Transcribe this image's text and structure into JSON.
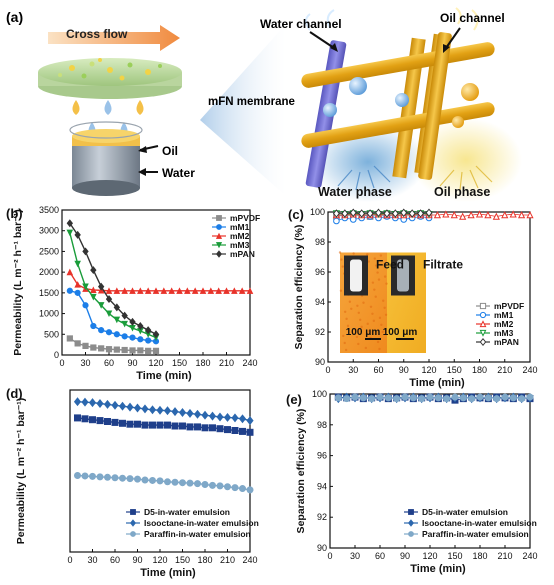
{
  "panel_a": {
    "label": "(a)",
    "cross_flow": "Cross flow",
    "oil": "Oil",
    "water": "Water",
    "membrane": "mFN membrane",
    "water_channel": "Water channel",
    "oil_channel": "Oil channel",
    "water_phase": "Water phase",
    "oil_phase": "Oil phase",
    "colors": {
      "water_fiber": "#7a78d8",
      "oil_fiber": "#e9ad16",
      "water_phase": "#6fa9d8",
      "oil_phase": "#f4e07a"
    }
  },
  "chart_data": [
    {
      "id": "b",
      "panel_label": "(b)",
      "type": "line",
      "xlabel": "Time (min)",
      "ylabel": "Permeability (L m⁻² h⁻¹ bar⁻¹)",
      "xlim": [
        0,
        240
      ],
      "ylim": [
        0,
        3500
      ],
      "xticks": [
        "0",
        "30",
        "60",
        "90",
        "120",
        "150",
        "180",
        "210",
        "240"
      ],
      "yticks": [
        "0",
        "500",
        "1000",
        "1500",
        "2000",
        "2500",
        "3000",
        "3500"
      ],
      "legend_position": "top-right",
      "series": [
        {
          "name": "mPVDF",
          "color": "#8c8c8c",
          "marker": "square",
          "x": [
            10,
            20,
            30,
            40,
            50,
            60,
            70,
            80,
            90,
            100,
            110,
            120
          ],
          "y": [
            400,
            280,
            220,
            180,
            160,
            140,
            130,
            120,
            110,
            110,
            100,
            100
          ]
        },
        {
          "name": "mM1",
          "color": "#1c7ee8",
          "marker": "circle",
          "x": [
            10,
            20,
            30,
            40,
            50,
            60,
            70,
            80,
            90,
            100,
            110,
            120
          ],
          "y": [
            1550,
            1500,
            1200,
            700,
            600,
            550,
            500,
            450,
            420,
            380,
            350,
            330
          ]
        },
        {
          "name": "mM2",
          "color": "#e8332a",
          "marker": "triangle-up",
          "x": [
            10,
            20,
            30,
            40,
            50,
            60,
            70,
            80,
            90,
            100,
            110,
            120,
            130,
            140,
            150,
            160,
            170,
            180,
            190,
            200,
            210,
            220,
            230,
            240
          ],
          "y": [
            2000,
            1700,
            1600,
            1570,
            1560,
            1550,
            1550,
            1550,
            1550,
            1550,
            1550,
            1550,
            1550,
            1550,
            1550,
            1550,
            1550,
            1550,
            1550,
            1550,
            1550,
            1550,
            1550,
            1550
          ]
        },
        {
          "name": "mM3",
          "color": "#1a9c3a",
          "marker": "triangle-down",
          "x": [
            10,
            20,
            30,
            40,
            50,
            60,
            70,
            80,
            90,
            100,
            110,
            120
          ],
          "y": [
            2950,
            2200,
            1650,
            1400,
            1200,
            1000,
            850,
            750,
            650,
            580,
            500,
            420
          ]
        },
        {
          "name": "mPAN",
          "color": "#333333",
          "marker": "diamond",
          "x": [
            10,
            20,
            30,
            40,
            50,
            60,
            70,
            80,
            90,
            100,
            110,
            120
          ],
          "y": [
            3180,
            2900,
            2500,
            2050,
            1650,
            1350,
            1150,
            950,
            800,
            700,
            600,
            500
          ]
        }
      ]
    },
    {
      "id": "c",
      "panel_label": "(c)",
      "type": "line",
      "xlabel": "Time (min)",
      "ylabel": "Separation efficiency (%)",
      "xlim": [
        0,
        240
      ],
      "ylim": [
        90,
        100
      ],
      "xticks": [
        "0",
        "30",
        "60",
        "90",
        "120",
        "150",
        "180",
        "210",
        "240"
      ],
      "yticks": [
        "90",
        "92",
        "94",
        "96",
        "98",
        "100"
      ],
      "legend_position": "bottom-right",
      "inset": {
        "feed": "Feed",
        "filtrate": "Filtrate",
        "scale_left": "100 μm",
        "scale_right": "100 μm"
      },
      "series": [
        {
          "name": "mPVDF",
          "color": "#8c8c8c",
          "marker": "square-open",
          "x": [
            10,
            20,
            30,
            40,
            50,
            60,
            70,
            80,
            90,
            100,
            110,
            120
          ],
          "y": [
            99.7,
            99.8,
            99.75,
            99.8,
            99.7,
            99.8,
            99.75,
            99.8,
            99.7,
            99.8,
            99.75,
            99.8
          ]
        },
        {
          "name": "mM1",
          "color": "#1c7ee8",
          "marker": "circle-open",
          "x": [
            10,
            20,
            30,
            40,
            50,
            60,
            70,
            80,
            90,
            100,
            110,
            120
          ],
          "y": [
            99.4,
            99.6,
            99.5,
            99.6,
            99.7,
            99.6,
            99.7,
            99.6,
            99.5,
            99.6,
            99.7,
            99.6
          ]
        },
        {
          "name": "mM2",
          "color": "#e8332a",
          "marker": "triangle-open",
          "x": [
            10,
            20,
            30,
            40,
            50,
            60,
            70,
            80,
            90,
            100,
            110,
            120,
            130,
            140,
            150,
            160,
            170,
            180,
            190,
            200,
            210,
            220,
            230,
            240
          ],
          "y": [
            99.8,
            99.8,
            99.85,
            99.8,
            99.8,
            99.85,
            99.8,
            99.8,
            99.8,
            99.85,
            99.8,
            99.8,
            99.8,
            99.85,
            99.8,
            99.7,
            99.8,
            99.85,
            99.8,
            99.7,
            99.8,
            99.85,
            99.8,
            99.8
          ]
        },
        {
          "name": "mM3",
          "color": "#1a9c3a",
          "marker": "triangle-down-open",
          "x": [
            10,
            20,
            30,
            40,
            50,
            60,
            70,
            80,
            90,
            100,
            110,
            120
          ],
          "y": [
            99.9,
            99.85,
            99.9,
            99.85,
            99.9,
            99.85,
            99.9,
            99.85,
            99.9,
            99.85,
            99.9,
            99.85
          ]
        },
        {
          "name": "mPAN",
          "color": "#333333",
          "marker": "diamond-open",
          "x": [
            10,
            20,
            30,
            40,
            50,
            60,
            70,
            80,
            90,
            100,
            110,
            120
          ],
          "y": [
            99.9,
            99.9,
            99.95,
            99.9,
            99.9,
            99.95,
            99.9,
            99.9,
            99.95,
            99.9,
            99.9,
            99.95
          ]
        }
      ]
    },
    {
      "id": "d",
      "panel_label": "(d)",
      "type": "line",
      "xlabel": "Time (min)",
      "ylabel": "Permeability (L m⁻² h⁻¹ bar⁻¹)",
      "xlim": [
        0,
        240
      ],
      "ylim": [
        0,
        1800
      ],
      "xticks": [
        "0",
        "30",
        "60",
        "90",
        "120",
        "150",
        "180",
        "210",
        "240"
      ],
      "yticks": [],
      "legend_position": "bottom-center",
      "series": [
        {
          "name": "D5-in-water emulsion",
          "color": "#1f3f8a",
          "marker": "square",
          "x": [
            10,
            20,
            30,
            40,
            50,
            60,
            70,
            80,
            90,
            100,
            110,
            120,
            130,
            140,
            150,
            160,
            170,
            180,
            190,
            200,
            210,
            220,
            230,
            240
          ],
          "y": [
            1490,
            1480,
            1470,
            1460,
            1450,
            1440,
            1430,
            1420,
            1420,
            1410,
            1410,
            1410,
            1410,
            1400,
            1400,
            1390,
            1390,
            1380,
            1380,
            1370,
            1360,
            1350,
            1340,
            1330
          ]
        },
        {
          "name": "Isooctane-in-water emulsion",
          "color": "#2b67ae",
          "marker": "diamond",
          "x": [
            10,
            20,
            30,
            40,
            50,
            60,
            70,
            80,
            90,
            100,
            110,
            120,
            130,
            140,
            150,
            160,
            170,
            180,
            190,
            200,
            210,
            220,
            230,
            240
          ],
          "y": [
            1670,
            1665,
            1660,
            1650,
            1640,
            1630,
            1620,
            1610,
            1600,
            1590,
            1580,
            1575,
            1570,
            1560,
            1550,
            1540,
            1530,
            1520,
            1510,
            1500,
            1495,
            1490,
            1480,
            1460
          ]
        },
        {
          "name": "Paraffin-in-water emulsion",
          "color": "#7fa8c8",
          "marker": "circle",
          "x": [
            10,
            20,
            30,
            40,
            50,
            60,
            70,
            80,
            90,
            100,
            110,
            120,
            130,
            140,
            150,
            160,
            170,
            180,
            190,
            200,
            210,
            220,
            230,
            240
          ],
          "y": [
            850,
            845,
            840,
            835,
            830,
            825,
            820,
            815,
            810,
            800,
            795,
            790,
            780,
            775,
            770,
            765,
            760,
            750,
            740,
            735,
            725,
            715,
            705,
            690
          ]
        }
      ]
    },
    {
      "id": "e",
      "panel_label": "(e)",
      "type": "line",
      "xlabel": "Time (min)",
      "ylabel": "Separation efficiency (%)",
      "xlim": [
        0,
        240
      ],
      "ylim": [
        90,
        100
      ],
      "xticks": [
        "0",
        "30",
        "60",
        "90",
        "120",
        "150",
        "180",
        "210",
        "240"
      ],
      "yticks": [
        "90",
        "92",
        "94",
        "96",
        "98",
        "100"
      ],
      "legend_position": "bottom-right",
      "series": [
        {
          "name": "D5-in-water emulsion",
          "color": "#1f3f8a",
          "marker": "square",
          "x": [
            10,
            20,
            30,
            40,
            50,
            60,
            70,
            80,
            90,
            100,
            110,
            120,
            130,
            140,
            150,
            160,
            170,
            180,
            190,
            200,
            210,
            220,
            230,
            240
          ],
          "y": [
            99.8,
            99.75,
            99.8,
            99.7,
            99.75,
            99.8,
            99.7,
            99.75,
            99.8,
            99.7,
            99.75,
            99.8,
            99.7,
            99.75,
            99.6,
            99.7,
            99.8,
            99.75,
            99.7,
            99.8,
            99.75,
            99.7,
            99.8,
            99.7
          ]
        },
        {
          "name": "Isooctane-in-water emulsion",
          "color": "#2b67ae",
          "marker": "diamond",
          "x": [
            10,
            20,
            30,
            40,
            50,
            60,
            70,
            80,
            90,
            100,
            110,
            120,
            130,
            140,
            150,
            160,
            170,
            180,
            190,
            200,
            210,
            220,
            230,
            240
          ],
          "y": [
            99.7,
            99.8,
            99.75,
            99.8,
            99.7,
            99.75,
            99.8,
            99.7,
            99.75,
            99.8,
            99.7,
            99.75,
            99.8,
            99.7,
            99.75,
            99.8,
            99.7,
            99.75,
            99.8,
            99.7,
            99.75,
            99.8,
            99.7,
            99.75
          ]
        },
        {
          "name": "Paraffin-in-water emulsion",
          "color": "#7fa8c8",
          "marker": "circle",
          "x": [
            10,
            20,
            30,
            40,
            50,
            60,
            70,
            80,
            90,
            100,
            110,
            120,
            130,
            140,
            150,
            160,
            170,
            180,
            190,
            200,
            210,
            220,
            230,
            240
          ],
          "y": [
            99.75,
            99.7,
            99.8,
            99.75,
            99.7,
            99.8,
            99.75,
            99.7,
            99.8,
            99.75,
            99.7,
            99.8,
            99.75,
            99.7,
            99.8,
            99.75,
            99.7,
            99.8,
            99.75,
            99.7,
            99.8,
            99.75,
            99.7,
            99.8
          ]
        }
      ]
    }
  ]
}
